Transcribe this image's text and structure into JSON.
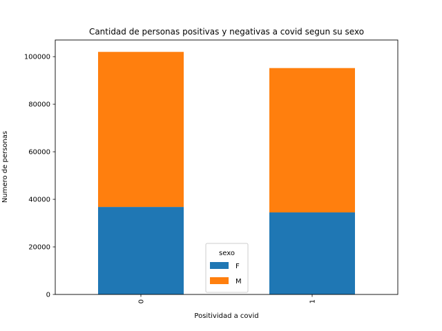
{
  "chart_data": {
    "type": "bar",
    "stacked": true,
    "title": "Cantidad de personas positivas y negativas a covid segun su sexo",
    "xlabel": "Positividad a covid",
    "ylabel": "Numero de personas",
    "categories": [
      "0",
      "1"
    ],
    "series": [
      {
        "name": "F",
        "color": "#1f77b4",
        "values": [
          36800,
          34500
        ]
      },
      {
        "name": "M",
        "color": "#ff7f0e",
        "values": [
          65200,
          60700
        ]
      }
    ],
    "ylim": [
      0,
      107000
    ],
    "yticks": [
      0,
      20000,
      40000,
      60000,
      80000,
      100000
    ],
    "grid": false,
    "legend": {
      "title": "sexo",
      "placement": "lower center"
    }
  }
}
